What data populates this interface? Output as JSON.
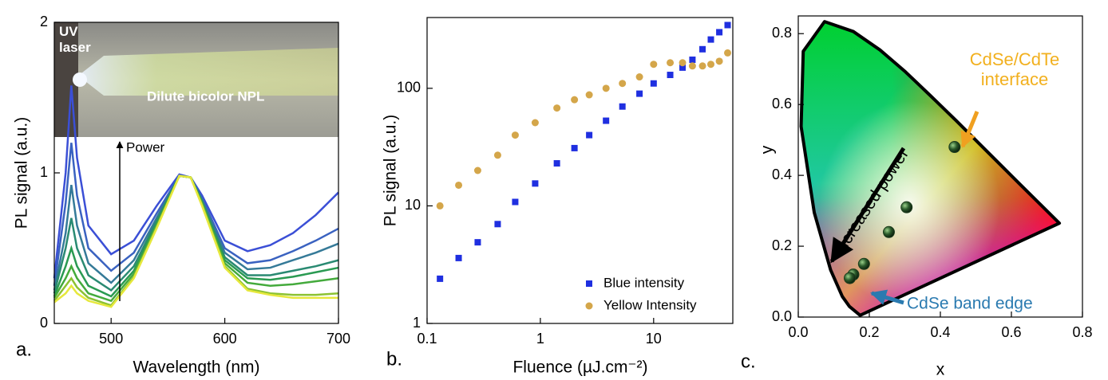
{
  "chart_data": [
    {
      "type": "line",
      "label": "a.",
      "xlabel": "Wavelength (nm)",
      "ylabel": "PL signal (a.u.)",
      "inset_texts": [
        "UV laser",
        "Dilute bicolor NPL"
      ],
      "annotation": "Power",
      "xlim": [
        450,
        700
      ],
      "xticks": [
        500,
        600,
        700
      ],
      "ylim": [
        0,
        2
      ],
      "yticks": [
        0,
        1,
        2
      ],
      "x": [
        450,
        460,
        465,
        470,
        480,
        500,
        520,
        540,
        560,
        570,
        580,
        600,
        620,
        640,
        660,
        680,
        700
      ],
      "series": [
        {
          "color": "#3b4fd6",
          "values": [
            0.3,
            1.0,
            1.58,
            1.1,
            0.65,
            0.46,
            0.55,
            0.78,
            0.99,
            0.97,
            0.85,
            0.55,
            0.48,
            0.52,
            0.6,
            0.72,
            0.87
          ]
        },
        {
          "color": "#3a62c0",
          "values": [
            0.25,
            0.8,
            1.2,
            0.85,
            0.5,
            0.35,
            0.47,
            0.73,
            0.98,
            0.97,
            0.83,
            0.5,
            0.4,
            0.42,
            0.48,
            0.55,
            0.63
          ]
        },
        {
          "color": "#357a98",
          "values": [
            0.22,
            0.6,
            0.92,
            0.65,
            0.4,
            0.27,
            0.42,
            0.7,
            0.98,
            0.97,
            0.82,
            0.47,
            0.36,
            0.37,
            0.42,
            0.47,
            0.53
          ]
        },
        {
          "color": "#2a8a72",
          "values": [
            0.2,
            0.5,
            0.7,
            0.5,
            0.32,
            0.22,
            0.38,
            0.68,
            0.98,
            0.97,
            0.81,
            0.44,
            0.32,
            0.32,
            0.35,
            0.38,
            0.42
          ]
        },
        {
          "color": "#2a9a52",
          "values": [
            0.18,
            0.38,
            0.5,
            0.38,
            0.25,
            0.18,
            0.35,
            0.66,
            0.98,
            0.97,
            0.8,
            0.42,
            0.3,
            0.29,
            0.31,
            0.34,
            0.37
          ]
        },
        {
          "color": "#44aa3c",
          "values": [
            0.17,
            0.3,
            0.38,
            0.3,
            0.2,
            0.15,
            0.33,
            0.65,
            0.98,
            0.97,
            0.8,
            0.4,
            0.27,
            0.25,
            0.26,
            0.28,
            0.3
          ]
        },
        {
          "color": "#8cc232",
          "values": [
            0.15,
            0.25,
            0.3,
            0.24,
            0.17,
            0.12,
            0.31,
            0.64,
            0.98,
            0.97,
            0.79,
            0.38,
            0.23,
            0.2,
            0.19,
            0.19,
            0.2
          ]
        },
        {
          "color": "#e6e83c",
          "values": [
            0.14,
            0.2,
            0.25,
            0.2,
            0.15,
            0.11,
            0.3,
            0.63,
            0.98,
            0.97,
            0.78,
            0.37,
            0.22,
            0.19,
            0.17,
            0.17,
            0.17
          ]
        }
      ]
    },
    {
      "type": "scatter",
      "label": "b.",
      "xlabel": "Fluence (µJ.cm⁻²)",
      "ylabel": "PL signal (a.u.)",
      "log_x": true,
      "log_y": true,
      "legend": "lower right",
      "xlim": [
        0.1,
        50
      ],
      "xticks": [
        0.1,
        1,
        10
      ],
      "ylim": [
        1,
        400
      ],
      "yticks": [
        1,
        10,
        100
      ],
      "series": [
        {
          "name": "Blue intensity",
          "color": "#1f2fe0",
          "marker": "square",
          "x": [
            0.13,
            0.19,
            0.28,
            0.42,
            0.6,
            0.9,
            1.4,
            2,
            2.7,
            3.8,
            5.3,
            7.5,
            10,
            14,
            18,
            22,
            27,
            32,
            38,
            45
          ],
          "values": [
            2.4,
            3.6,
            4.9,
            7,
            10.8,
            15.5,
            23,
            31,
            40,
            53,
            70,
            90,
            110,
            130,
            150,
            175,
            215,
            260,
            300,
            345
          ]
        },
        {
          "name": "Yellow Intensity",
          "color": "#d4a64a",
          "marker": "circle",
          "x": [
            0.13,
            0.19,
            0.28,
            0.42,
            0.6,
            0.9,
            1.4,
            2,
            2.7,
            3.8,
            5.3,
            7.5,
            10,
            14,
            18,
            22,
            27,
            32,
            38,
            45
          ],
          "values": [
            10,
            15,
            20,
            27,
            40,
            51,
            68,
            80,
            88,
            100,
            110,
            125,
            160,
            165,
            165,
            155,
            155,
            160,
            170,
            200
          ]
        }
      ]
    },
    {
      "type": "scatter",
      "label": "c.",
      "xlabel": "x",
      "ylabel": "y",
      "annotations": [
        "CdSe/CdTe interface",
        "Increased power",
        "CdSe band edge"
      ],
      "xlim": [
        0,
        0.8
      ],
      "xticks": [
        {
          "value": 0,
          "label": "0.0"
        },
        0.2,
        0.4,
        0.6,
        0.8
      ],
      "ylim": [
        0,
        0.85
      ],
      "yticks": [
        {
          "value": 0,
          "label": "0.0"
        },
        0.2,
        0.4,
        0.6,
        0.8
      ],
      "series": [
        {
          "color": "#1d3d1d",
          "marker": "sphere",
          "x": [
            0.44,
            0.305,
            0.255,
            0.185,
            0.155,
            0.145
          ],
          "values": [
            0.48,
            0.31,
            0.24,
            0.15,
            0.12,
            0.11
          ]
        }
      ]
    }
  ]
}
